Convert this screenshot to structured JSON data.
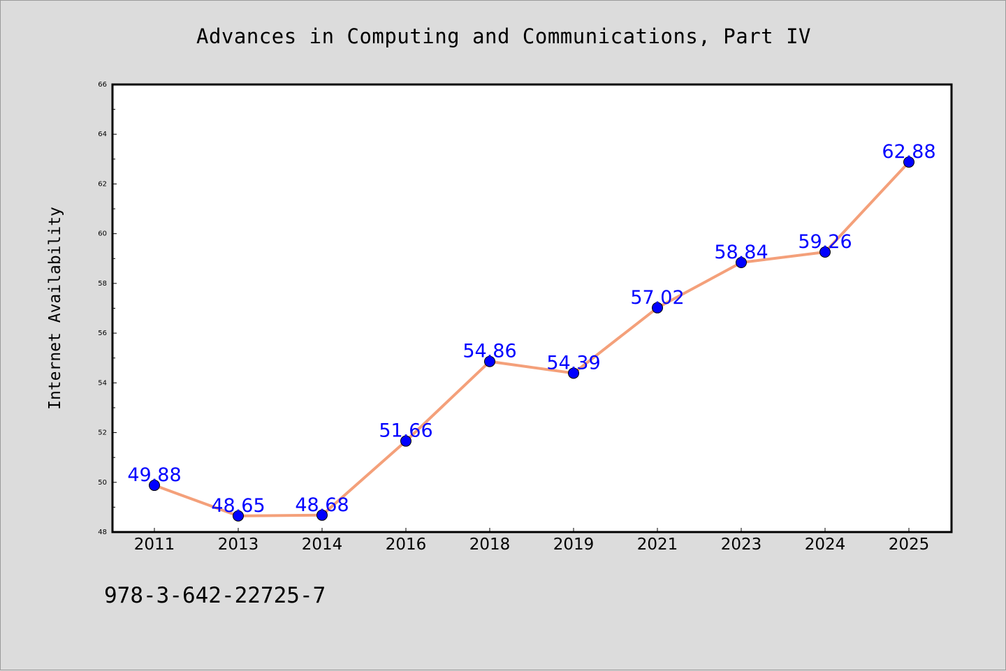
{
  "chart_data": {
    "type": "line",
    "title": "Advances in Computing and Communications, Part IV",
    "xlabel": "",
    "ylabel": "Internet Availability",
    "categories": [
      "2011",
      "2013",
      "2014",
      "2016",
      "2018",
      "2019",
      "2021",
      "2023",
      "2024",
      "2025"
    ],
    "series": [
      {
        "values": [
          49.88,
          48.65,
          48.68,
          51.66,
          54.86,
          54.39,
          57.02,
          58.84,
          59.26,
          62.88
        ]
      }
    ],
    "data_labels": [
      "49.88",
      "48.65",
      "48.68",
      "51.66",
      "54.86",
      "54.39",
      "57.02",
      "58.84",
      "59.26",
      "62.88"
    ],
    "ylim": [
      48,
      66
    ],
    "yticks": [
      48,
      50,
      52,
      54,
      56,
      58,
      60,
      62,
      64,
      66
    ],
    "ytick_labels": [
      "48",
      "50",
      "52",
      "54",
      "56",
      "58",
      "60",
      "62",
      "64",
      "66"
    ],
    "grid": false,
    "legend": "none",
    "line_color": "#f4a07a",
    "marker_color": "#0000ff",
    "label_color": "#0000ff"
  },
  "footer": {
    "isbn": "978-3-642-22725-7"
  }
}
